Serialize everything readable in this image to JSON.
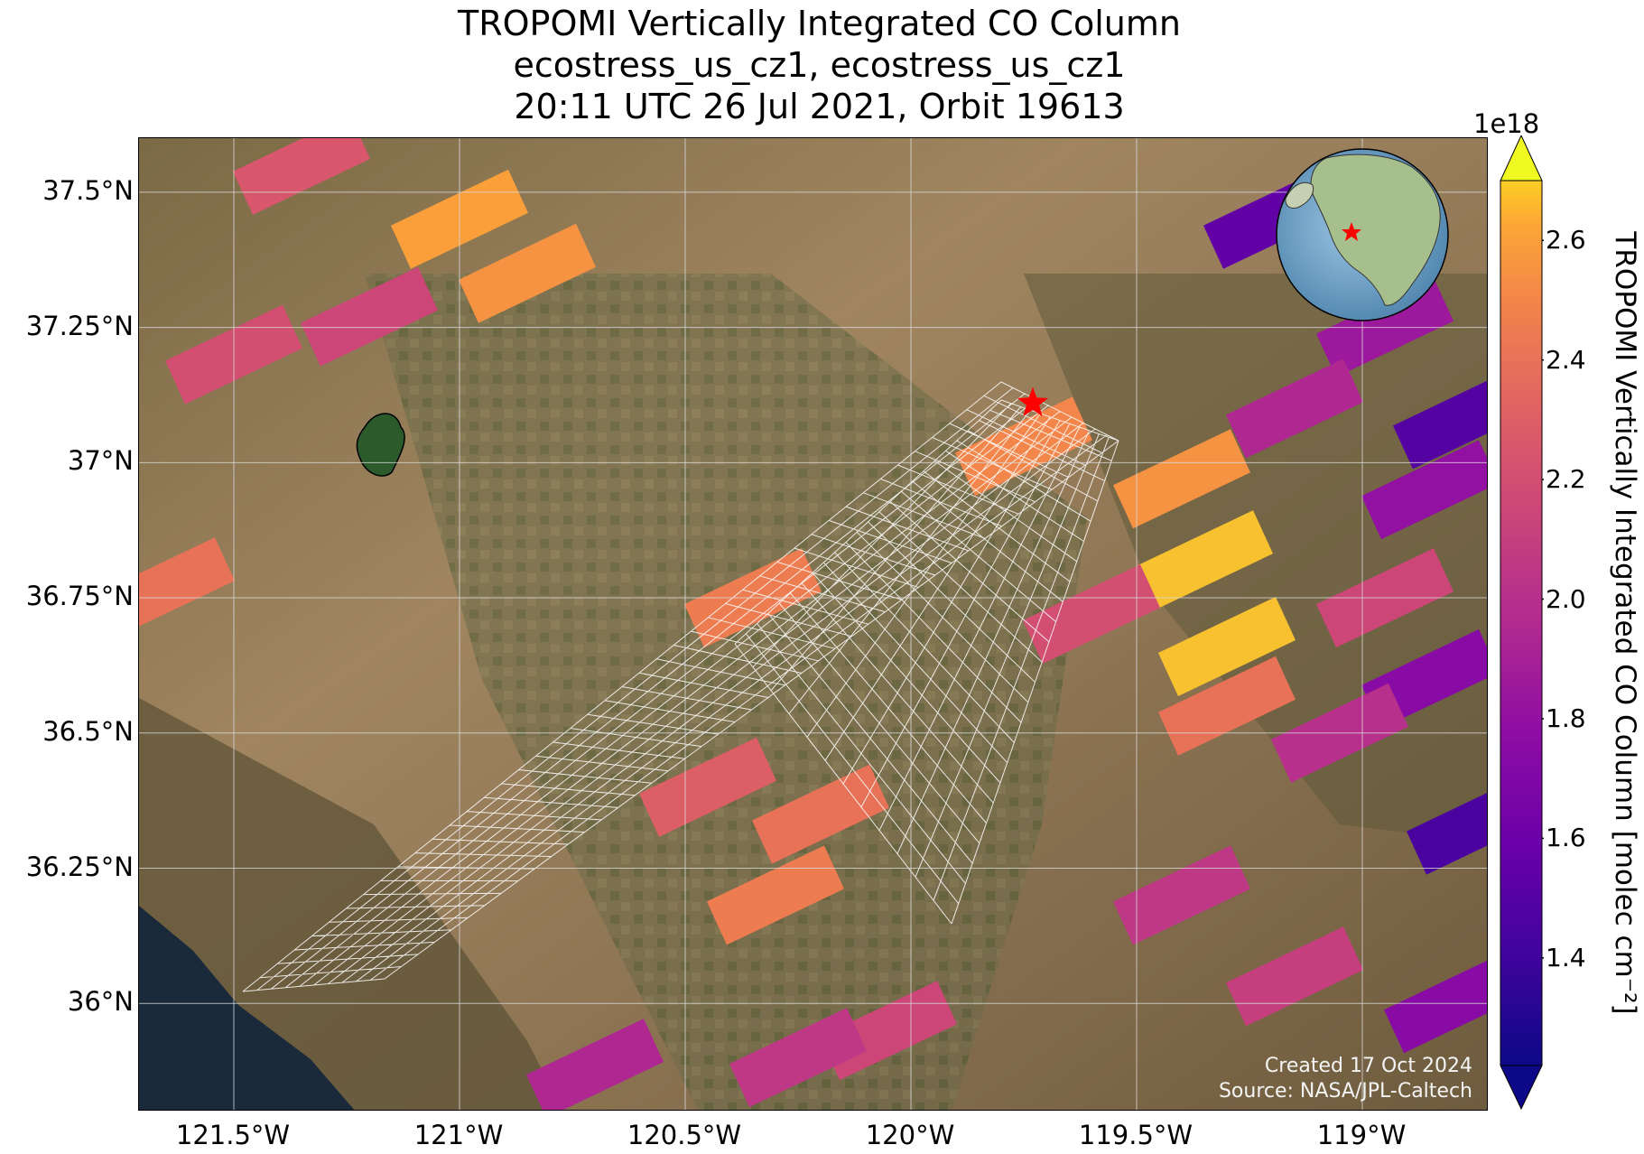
{
  "title": {
    "line1": "TROPOMI Vertically Integrated CO Column",
    "line2": "ecostress_us_cz1, ecostress_us_cz1",
    "line3": "20:11 UTC 26 Jul 2021, Orbit 19613"
  },
  "map": {
    "extent": {
      "lon_min": -121.71,
      "lon_max": -118.72,
      "lat_min": 35.8,
      "lat_max": 37.6
    },
    "gridlines": true,
    "lat_ticks": [
      {
        "value": 37.5,
        "label": "37.5°N"
      },
      {
        "value": 37.25,
        "label": "37.25°N"
      },
      {
        "value": 37.0,
        "label": "37°N"
      },
      {
        "value": 36.75,
        "label": "36.75°N"
      },
      {
        "value": 36.5,
        "label": "36.5°N"
      },
      {
        "value": 36.25,
        "label": "36.25°N"
      },
      {
        "value": 36.0,
        "label": "36°N"
      }
    ],
    "lon_ticks": [
      {
        "value": -121.5,
        "label": "121.5°W"
      },
      {
        "value": -121.0,
        "label": "121°W"
      },
      {
        "value": -120.5,
        "label": "120.5°W"
      },
      {
        "value": -120.0,
        "label": "120°W"
      },
      {
        "value": -119.5,
        "label": "119.5°W"
      },
      {
        "value": -119.0,
        "label": "119°W"
      }
    ],
    "target_marker": {
      "lon": -119.73,
      "lat": 37.11,
      "color": "#ff0000",
      "icon": "star-icon"
    },
    "inset_globe": {
      "marker": "star-icon",
      "marker_color": "#ff0000",
      "ocean": "#7fb2d6",
      "land": "#a7bf8c"
    },
    "background_colors": {
      "terrain": "#8c7250",
      "ocean": "#1a2a3a",
      "lake": "#2b5a2b"
    }
  },
  "credits": {
    "created": "Created 17 Oct 2024",
    "source": "Source: NASA/JPL-Caltech"
  },
  "colorbar": {
    "label": "TROPOMI Vertically Integrated CO Column [molec cm⁻²]",
    "exponent": "1e18",
    "colormap": "plasma",
    "min": 1.22,
    "max": 2.7,
    "extend": "both",
    "ticks": [
      {
        "value": 1.4,
        "label": "1.4"
      },
      {
        "value": 1.6,
        "label": "1.6"
      },
      {
        "value": 1.8,
        "label": "1.8"
      },
      {
        "value": 2.0,
        "label": "2.0"
      },
      {
        "value": 2.2,
        "label": "2.2"
      },
      {
        "value": 2.4,
        "label": "2.4"
      },
      {
        "value": 2.6,
        "label": "2.6"
      }
    ]
  },
  "chart_data": {
    "type": "heatmap",
    "title": "TROPOMI Vertically Integrated CO Column",
    "xlabel": "",
    "ylabel": "",
    "units": "molec cm^-2 (x1e18)",
    "pixels": [
      {
        "lon": -121.35,
        "lat": 37.55,
        "value": 2.25
      },
      {
        "lon": -121.0,
        "lat": 37.45,
        "value": 2.6
      },
      {
        "lon": -120.85,
        "lat": 37.35,
        "value": 2.55
      },
      {
        "lon": -121.2,
        "lat": 37.27,
        "value": 2.15
      },
      {
        "lon": -121.5,
        "lat": 37.2,
        "value": 2.2
      },
      {
        "lon": -121.65,
        "lat": 36.77,
        "value": 2.4
      },
      {
        "lon": -120.35,
        "lat": 36.75,
        "value": 2.45
      },
      {
        "lon": -120.45,
        "lat": 36.4,
        "value": 2.3
      },
      {
        "lon": -120.2,
        "lat": 36.35,
        "value": 2.4
      },
      {
        "lon": -120.3,
        "lat": 36.2,
        "value": 2.45
      },
      {
        "lon": -119.75,
        "lat": 37.03,
        "value": 2.5
      },
      {
        "lon": -119.4,
        "lat": 36.97,
        "value": 2.55
      },
      {
        "lon": -119.35,
        "lat": 36.82,
        "value": 2.65
      },
      {
        "lon": -119.6,
        "lat": 36.72,
        "value": 2.2
      },
      {
        "lon": -119.3,
        "lat": 36.66,
        "value": 2.65
      },
      {
        "lon": -119.3,
        "lat": 36.55,
        "value": 2.4
      },
      {
        "lon": -119.2,
        "lat": 37.45,
        "value": 1.55
      },
      {
        "lon": -118.95,
        "lat": 37.25,
        "value": 1.85
      },
      {
        "lon": -119.15,
        "lat": 37.1,
        "value": 1.95
      },
      {
        "lon": -118.85,
        "lat": 36.95,
        "value": 1.8
      },
      {
        "lon": -118.78,
        "lat": 37.08,
        "value": 1.5
      },
      {
        "lon": -118.95,
        "lat": 36.75,
        "value": 2.15
      },
      {
        "lon": -118.85,
        "lat": 36.6,
        "value": 1.75
      },
      {
        "lon": -119.05,
        "lat": 36.5,
        "value": 2.0
      },
      {
        "lon": -118.75,
        "lat": 36.33,
        "value": 1.45
      },
      {
        "lon": -119.4,
        "lat": 36.2,
        "value": 2.05
      },
      {
        "lon": -119.15,
        "lat": 36.05,
        "value": 2.1
      },
      {
        "lon": -118.8,
        "lat": 36.0,
        "value": 1.75
      },
      {
        "lon": -120.05,
        "lat": 35.95,
        "value": 2.15
      },
      {
        "lon": -120.25,
        "lat": 35.9,
        "value": 2.05
      },
      {
        "lon": -120.7,
        "lat": 35.88,
        "value": 1.95
      }
    ]
  }
}
